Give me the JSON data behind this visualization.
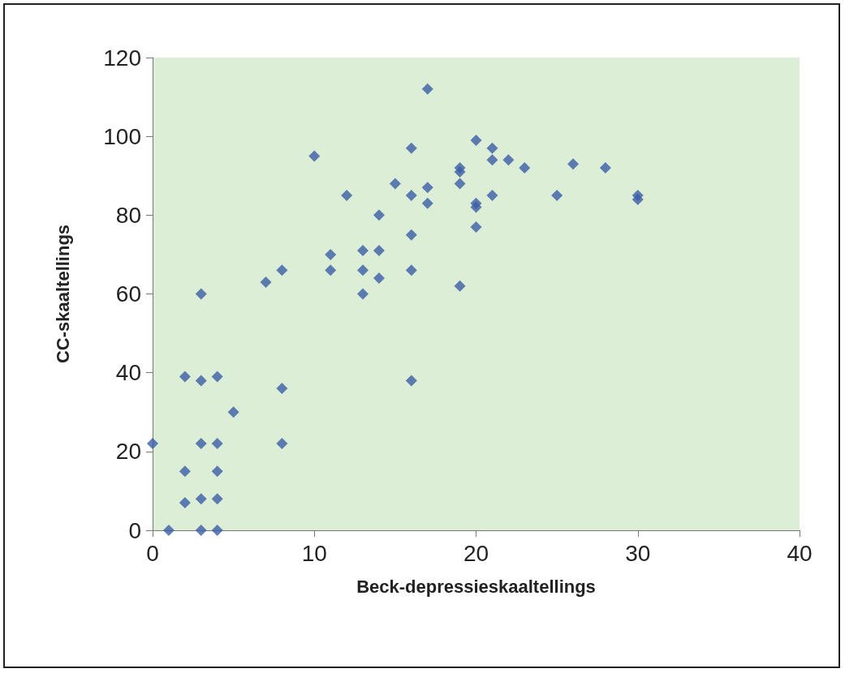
{
  "chart_data": {
    "type": "scatter",
    "xlabel": "Beck-depressieskaaltellings",
    "ylabel": "CC-skaaltellings",
    "x": [
      0,
      1,
      2,
      2,
      2,
      3,
      3,
      3,
      3,
      3,
      4,
      4,
      4,
      4,
      4,
      5,
      7,
      8,
      8,
      8,
      10,
      11,
      11,
      12,
      13,
      13,
      13,
      14,
      14,
      14,
      15,
      16,
      16,
      16,
      16,
      16,
      17,
      17,
      17,
      19,
      19,
      19,
      19,
      20,
      20,
      20,
      20,
      21,
      21,
      21,
      22,
      23,
      25,
      26,
      28,
      30,
      30
    ],
    "series": [
      {
        "color": "#3b5ea6",
        "values": [
          22,
          0,
          39,
          15,
          7,
          38,
          22,
          8,
          0,
          60,
          39,
          22,
          15,
          8,
          0,
          30,
          63,
          66,
          36,
          22,
          95,
          70,
          66,
          85,
          71,
          66,
          60,
          80,
          71,
          64,
          88,
          97,
          85,
          75,
          66,
          38,
          112,
          87,
          83,
          92,
          91,
          88,
          62,
          99,
          83,
          82,
          77,
          97,
          94,
          85,
          94,
          92,
          85,
          93,
          92,
          85,
          84
        ]
      }
    ],
    "xlim": [
      0,
      40
    ],
    "xticks": [
      0,
      10,
      20,
      30,
      40
    ],
    "ylim": [
      0,
      120
    ],
    "yticks": [
      0,
      20,
      40,
      60,
      80,
      100,
      120
    ],
    "grid": false,
    "marker": "diamond"
  }
}
